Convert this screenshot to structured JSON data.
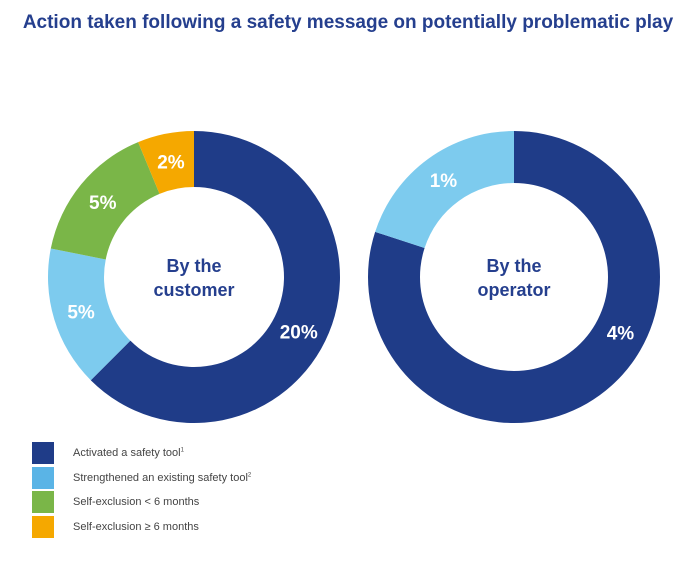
{
  "chart_data": {
    "type": "pie",
    "title": "Action taken following a safety message on potentially problematic play",
    "legend": [
      {
        "label": "Activated a safety tool",
        "sup": "1",
        "color": "#1f3c88"
      },
      {
        "label": "Strengthened an existing safety tool",
        "sup": "2",
        "color": "#5ab4e6"
      },
      {
        "label": "Self-exclusion < 6 months",
        "sup": "",
        "color": "#7ab648"
      },
      {
        "label": "Self-exclusion ≥ 6 months",
        "sup": "",
        "color": "#f5a800"
      }
    ],
    "charts": [
      {
        "center_label": [
          "By the",
          "customer"
        ],
        "slices": [
          {
            "series": 0,
            "value": 20,
            "label": "20%",
            "color": "#1f3c88"
          },
          {
            "series": 1,
            "value": 5,
            "label": "5%",
            "color": "#7dcbee"
          },
          {
            "series": 2,
            "value": 5,
            "label": "5%",
            "color": "#7ab648"
          },
          {
            "series": 3,
            "value": 2,
            "label": "2%",
            "color": "#f5a800"
          }
        ]
      },
      {
        "center_label": [
          "By the",
          "operator"
        ],
        "slices": [
          {
            "series": 0,
            "value": 4,
            "label": "4%",
            "color": "#1f3c88"
          },
          {
            "series": 1,
            "value": 1,
            "label": "1%",
            "color": "#7dcbee"
          }
        ]
      }
    ]
  }
}
